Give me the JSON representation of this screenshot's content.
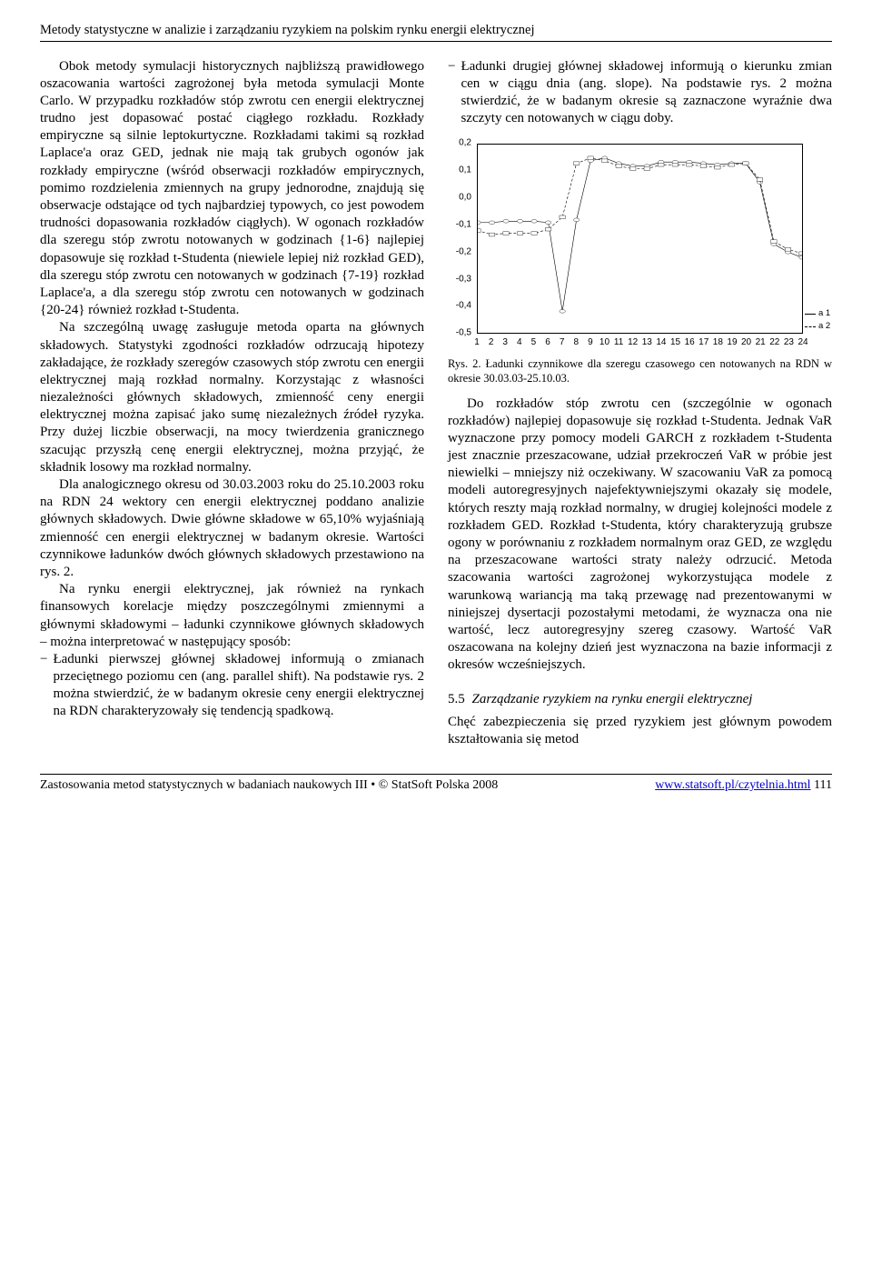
{
  "header": "Metody statystyczne w analizie i zarządzaniu ryzykiem na polskim rynku energii elektrycznej",
  "left_col": {
    "p1": "Obok metody symulacji historycznych najbliższą prawidłowego oszacowania wartości zagrożonej była metoda symulacji Monte Carlo. W przypadku rozkładów stóp zwrotu cen energii elektrycznej trudno jest dopasować postać ciągłego rozkładu. Rozkłady empiryczne są silnie leptokurtyczne. Rozkładami takimi są rozkład Laplace'a oraz GED, jednak nie mają tak grubych ogonów jak rozkłady empiryczne (wśród obserwacji rozkładów empirycznych, pomimo rozdzielenia zmiennych na grupy jednorodne, znajdują się obserwacje odstające od tych najbardziej typowych, co jest powodem trudności dopasowania rozkładów ciągłych). W ogonach rozkładów dla szeregu stóp zwrotu notowanych w godzinach {1-6} najlepiej dopasowuje się rozkład t-Studenta (niewiele lepiej niż rozkład GED), dla szeregu stóp zwrotu cen notowanych w godzinach {7-19} rozkład Laplace'a, a dla szeregu stóp zwrotu cen notowanych w godzinach {20-24} również rozkład t-Studenta.",
    "p2": "Na szczególną uwagę zasługuje metoda oparta na głównych składowych. Statystyki zgodności rozkładów odrzucają hipotezy zakładające, że rozkłady szeregów czasowych stóp zwrotu cen energii elektrycznej mają rozkład normalny. Korzystając z własności niezależności głównych składowych, zmienność ceny energii elektrycznej można zapisać jako sumę niezależnych źródeł ryzyka. Przy dużej liczbie obserwacji, na mocy twierdzenia granicznego szacując przyszłą cenę energii elektrycznej, można przyjąć, że składnik losowy ma rozkład normalny.",
    "p3": "Dla analogicznego okresu od 30.03.2003 roku do 25.10.2003 roku na RDN 24 wektory cen energii elektrycznej poddano analizie głównych składowych. Dwie główne składowe w 65,10% wyjaśniają zmienność cen energii elektrycznej w badanym okresie. Wartości czynnikowe ładunków dwóch głównych składowych przestawiono na rys. 2.",
    "p4": "Na rynku energii elektrycznej, jak również na rynkach finansowych korelacje między poszczególnymi zmiennymi a głównymi składowymi – ładunki czynnikowe głównych składowych – można interpretować w następujący sposób:",
    "b1": "Ładunki pierwszej głównej składowej informują o zmianach przeciętnego poziomu cen (ang. parallel shift). Na podstawie rys. 2 można stwierdzić, że w badanym okresie ceny energii elektrycznej na RDN charakteryzowały się tendencją spadkową."
  },
  "right_col": {
    "b2": "Ładunki drugiej głównej składowej informują o kierunku zmian cen w ciągu dnia (ang. slope). Na podstawie rys. 2 można stwierdzić, że w badanym okresie są zaznaczone wyraźnie dwa szczyty cen notowanych w ciągu doby.",
    "p_after": "Do rozkładów stóp zwrotu cen (szczególnie w ogonach rozkładów) najlepiej dopasowuje się rozkład t-Studenta. Jednak VaR wyznaczone przy pomocy modeli GARCH z rozkładem t-Studenta jest znacznie przeszacowane, udział przekroczeń VaR w próbie jest niewielki – mniejszy niż oczekiwany. W szacowaniu VaR za pomocą modeli autoregresyjnych najefektywniejszymi okazały się modele, których reszty mają rozkład normalny, w drugiej kolejności modele z rozkładem GED. Rozkład t-Studenta, który charakteryzują grubsze ogony w porównaniu z rozkładem normalnym oraz GED, ze względu na przeszacowane wartości straty należy odrzucić. Metoda szacowania wartości zagrożonej wykorzystująca modele z warunkową wariancją ma taką przewagę nad prezentowanymi w niniejszej dysertacji pozostałymi metodami, że wyznacza ona nie wartość, lecz autoregresyjny szereg czasowy. Wartość VaR oszacowana na kolejny dzień jest wyznaczona na bazie informacji z okresów wcześniejszych.",
    "sub_num": "5.5",
    "sub_title": "Zarządzanie ryzykiem na rynku energii elektrycznej",
    "p_last": "Chęć zabezpieczenia się przed ryzykiem jest głównym powodem kształtowania się metod"
  },
  "chart": {
    "type": "line",
    "x": [
      1,
      2,
      3,
      4,
      5,
      6,
      7,
      8,
      9,
      10,
      11,
      12,
      13,
      14,
      15,
      16,
      17,
      18,
      19,
      20,
      21,
      22,
      23,
      24
    ],
    "ylim": [
      -0.5,
      0.2
    ],
    "yticks": [
      -0.5,
      -0.4,
      -0.3,
      -0.2,
      -0.1,
      0.0,
      0.1,
      0.2
    ],
    "ytick_labels": [
      "-0,5",
      "-0,4",
      "-0,3",
      "-0,2",
      "-0,1",
      "0,0",
      "0,1",
      "0,2"
    ],
    "series": [
      {
        "name": "a 1",
        "dash": "solid",
        "marker": "circle",
        "values": [
          -0.09,
          -0.09,
          -0.085,
          -0.085,
          -0.085,
          -0.09,
          -0.42,
          -0.08,
          0.14,
          0.15,
          0.13,
          0.12,
          0.12,
          0.135,
          0.135,
          0.135,
          0.13,
          0.125,
          0.13,
          0.13,
          0.06,
          -0.17,
          -0.2,
          -0.22
        ]
      },
      {
        "name": "a 2",
        "dash": "dashed",
        "marker": "square",
        "values": [
          -0.12,
          -0.135,
          -0.13,
          -0.13,
          -0.13,
          -0.115,
          -0.07,
          0.13,
          0.15,
          0.14,
          0.12,
          0.11,
          0.11,
          0.125,
          0.125,
          0.125,
          0.12,
          0.115,
          0.125,
          0.13,
          0.07,
          -0.16,
          -0.19,
          -0.205
        ]
      }
    ],
    "legend_labels": [
      "a 1",
      "a 2"
    ],
    "line_color": "#000000",
    "background": "#ffffff"
  },
  "fig_caption": "Rys. 2. Ładunki czynnikowe dla szeregu czasowego cen notowanych na RDN w okresie 30.03.03-25.10.03.",
  "footer": {
    "left": "Zastosowania metod statystycznych w badaniach naukowych III • © StatSoft Polska 2008",
    "link": "www.statsoft.pl/czytelnia.html",
    "page": "111"
  }
}
